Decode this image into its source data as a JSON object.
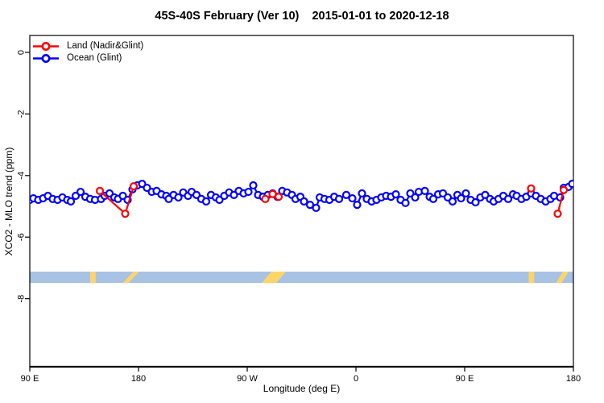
{
  "chart_data": {
    "type": "line",
    "title": "45S-40S February (Ver 10)    2015-01-01 to 2020-12-18",
    "xlabel": "Longitude (deg E)",
    "ylabel": "XCO2 - MLO trend (ppm)",
    "grid": false,
    "legend_position": "top-left",
    "x_axis": {
      "min": 90,
      "max": 540,
      "ticks": [
        {
          "lon": 90,
          "label": "90 E"
        },
        {
          "lon": 180,
          "label": "180"
        },
        {
          "lon": 270,
          "label": "90 W"
        },
        {
          "lon": 360,
          "label": "0"
        },
        {
          "lon": 450,
          "label": "90 E"
        },
        {
          "lon": 540,
          "label": "180"
        }
      ]
    },
    "y_axis": {
      "min": -10.2,
      "max": 0.55,
      "ticks": [
        {
          "v": 0,
          "label": "0"
        },
        {
          "v": -2,
          "label": "-2"
        },
        {
          "v": -4,
          "label": "-4"
        },
        {
          "v": -6,
          "label": "-6"
        },
        {
          "v": -8,
          "label": "-8"
        }
      ]
    },
    "legend": [
      {
        "label": "Land (Nadir&Glint)",
        "color": "#ff0000"
      },
      {
        "label": "Ocean (Glint)",
        "color": "#0000ff"
      }
    ],
    "series": [
      {
        "name": "Land (Nadir&Glint)",
        "id": "land",
        "color": "#ff0000",
        "marker": "open-circle",
        "segments": [
          [
            [
              148,
              -4.5
            ],
            [
              169,
              -5.24
            ],
            [
              176,
              -4.35
            ]
          ],
          [
            [
              285,
              -4.76
            ],
            [
              291,
              -4.6
            ],
            [
              296,
              -4.69
            ]
          ],
          [
            [
              505,
              -4.42
            ]
          ],
          [
            [
              527,
              -5.24
            ],
            [
              532,
              -4.47
            ]
          ]
        ]
      },
      {
        "name": "Ocean (Glint)",
        "id": "ocean",
        "color": "#0000ff",
        "marker": "open-circle",
        "segments": [
          [
            [
              90,
              -4.79
            ],
            [
              93,
              -4.74
            ],
            [
              97,
              -4.79
            ],
            [
              101,
              -4.74
            ],
            [
              105,
              -4.66
            ],
            [
              109,
              -4.76
            ],
            [
              113,
              -4.79
            ],
            [
              117,
              -4.71
            ],
            [
              121,
              -4.79
            ],
            [
              124,
              -4.84
            ],
            [
              128,
              -4.66
            ],
            [
              132,
              -4.53
            ],
            [
              136,
              -4.69
            ],
            [
              140,
              -4.76
            ],
            [
              144,
              -4.79
            ],
            [
              149,
              -4.76
            ],
            [
              152,
              -4.66
            ],
            [
              156,
              -4.58
            ],
            [
              160,
              -4.71
            ],
            [
              163,
              -4.76
            ],
            [
              167,
              -4.66
            ],
            [
              171,
              -4.79
            ],
            [
              175,
              -4.45
            ],
            [
              179,
              -4.32
            ],
            [
              183,
              -4.27
            ],
            [
              187,
              -4.4
            ],
            [
              191,
              -4.53
            ],
            [
              195,
              -4.5
            ],
            [
              199,
              -4.61
            ],
            [
              203,
              -4.66
            ],
            [
              205,
              -4.76
            ],
            [
              209,
              -4.63
            ],
            [
              213,
              -4.71
            ],
            [
              217,
              -4.55
            ],
            [
              221,
              -4.66
            ],
            [
              224,
              -4.53
            ],
            [
              228,
              -4.63
            ],
            [
              232,
              -4.76
            ],
            [
              236,
              -4.84
            ],
            [
              240,
              -4.63
            ],
            [
              244,
              -4.71
            ],
            [
              247,
              -4.79
            ],
            [
              251,
              -4.66
            ],
            [
              255,
              -4.55
            ],
            [
              259,
              -4.63
            ],
            [
              263,
              -4.5
            ],
            [
              267,
              -4.58
            ],
            [
              271,
              -4.53
            ],
            [
              275,
              -4.32
            ],
            [
              279,
              -4.63
            ],
            [
              283,
              -4.69
            ],
            [
              287,
              -4.63
            ],
            [
              291,
              -4.58
            ],
            [
              295,
              -4.69
            ],
            [
              299,
              -4.5
            ],
            [
              303,
              -4.55
            ],
            [
              307,
              -4.63
            ],
            [
              310,
              -4.76
            ],
            [
              314,
              -4.69
            ],
            [
              317,
              -4.84
            ],
            [
              322,
              -4.95
            ],
            [
              327,
              -5.05
            ],
            [
              330,
              -4.71
            ],
            [
              334,
              -4.76
            ],
            [
              338,
              -4.79
            ],
            [
              342,
              -4.69
            ],
            [
              346,
              -4.76
            ],
            [
              352,
              -4.63
            ],
            [
              357,
              -4.74
            ],
            [
              361,
              -4.95
            ],
            [
              365,
              -4.58
            ],
            [
              369,
              -4.76
            ],
            [
              373,
              -4.84
            ],
            [
              377,
              -4.79
            ],
            [
              381,
              -4.71
            ],
            [
              385,
              -4.66
            ],
            [
              389,
              -4.69
            ],
            [
              393,
              -4.61
            ],
            [
              397,
              -4.79
            ],
            [
              401,
              -4.89
            ],
            [
              405,
              -4.58
            ],
            [
              409,
              -4.71
            ],
            [
              412,
              -4.53
            ],
            [
              417,
              -4.5
            ],
            [
              421,
              -4.69
            ],
            [
              424,
              -4.76
            ],
            [
              428,
              -4.61
            ],
            [
              432,
              -4.58
            ],
            [
              436,
              -4.71
            ],
            [
              440,
              -4.84
            ],
            [
              444,
              -4.63
            ],
            [
              447,
              -4.74
            ],
            [
              451,
              -4.58
            ],
            [
              455,
              -4.79
            ],
            [
              459,
              -4.87
            ],
            [
              463,
              -4.71
            ],
            [
              467,
              -4.63
            ],
            [
              471,
              -4.76
            ],
            [
              474,
              -4.84
            ],
            [
              478,
              -4.76
            ],
            [
              482,
              -4.66
            ],
            [
              486,
              -4.76
            ],
            [
              490,
              -4.61
            ],
            [
              493,
              -4.66
            ],
            [
              497,
              -4.76
            ],
            [
              501,
              -4.69
            ],
            [
              505,
              -4.58
            ],
            [
              509,
              -4.66
            ],
            [
              513,
              -4.76
            ],
            [
              517,
              -4.84
            ],
            [
              521,
              -4.76
            ],
            [
              524,
              -4.66
            ],
            [
              529,
              -4.71
            ],
            [
              532,
              -4.4
            ],
            [
              536,
              -4.37
            ],
            [
              539,
              -4.27
            ]
          ]
        ]
      }
    ],
    "land_strip": {
      "description": "ocean/land map band along longitude",
      "ocean_color": "#a8c2e4",
      "land_color": "#fcd56a",
      "v_top": -7.12,
      "v_bottom": -7.49,
      "patches": [
        {
          "from": 140,
          "to": 144.5,
          "slant": false,
          "w": 0
        },
        {
          "from": 167,
          "to": 180.5,
          "slant": true,
          "w": 7
        },
        {
          "from": 282,
          "to": 302,
          "slant": true,
          "w": 18
        },
        {
          "from": 503,
          "to": 507.5,
          "slant": false,
          "w": 0
        },
        {
          "from": 525.5,
          "to": 536,
          "slant": true,
          "w": 7
        }
      ]
    }
  }
}
